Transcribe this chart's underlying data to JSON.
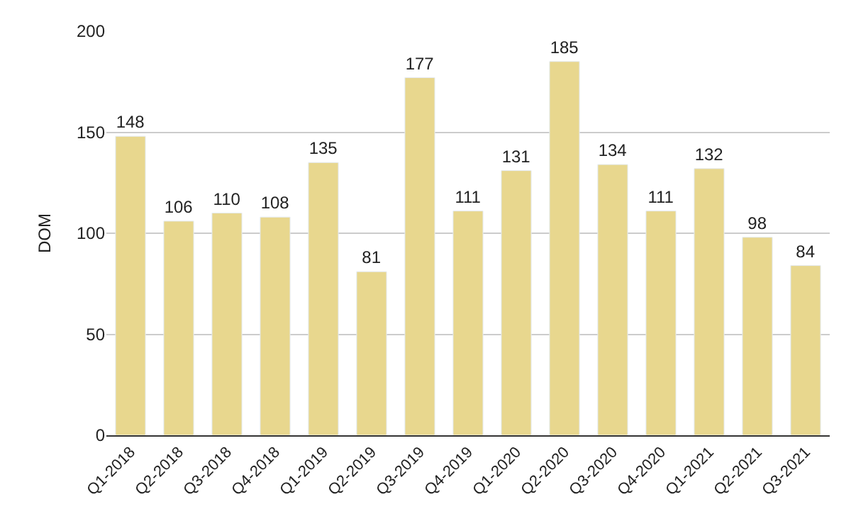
{
  "chart_data": {
    "type": "bar",
    "ylabel": "DOM",
    "categories": [
      "Q1-2018",
      "Q2-2018",
      "Q3-2018",
      "Q4-2018",
      "Q1-2019",
      "Q2-2019",
      "Q3-2019",
      "Q4-2019",
      "Q1-2020",
      "Q2-2020",
      "Q3-2020",
      "Q4-2020",
      "Q1-2021",
      "Q2-2021",
      "Q3-2021"
    ],
    "values": [
      148,
      106,
      110,
      108,
      135,
      81,
      177,
      111,
      131,
      185,
      134,
      111,
      132,
      98,
      84
    ],
    "color": "#e8d78e",
    "ylim": [
      0,
      200
    ],
    "yticks": [
      0,
      50,
      100,
      150,
      200
    ],
    "grid": "y",
    "data_labels": true,
    "legend": false
  }
}
